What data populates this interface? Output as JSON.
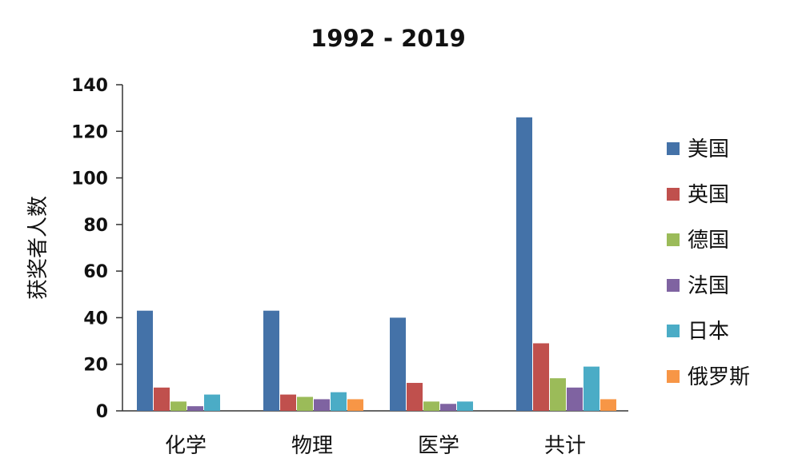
{
  "chart_data": {
    "type": "bar",
    "title": "1992 - 2019",
    "ylabel": "获奖者人数",
    "xlabel": "",
    "ylim": [
      0,
      140
    ],
    "yticks": [
      0,
      20,
      40,
      60,
      80,
      100,
      120,
      140
    ],
    "grid": false,
    "legend_position": "right",
    "categories": [
      "化学",
      "物理",
      "医学",
      "共计"
    ],
    "series": [
      {
        "name": "美国",
        "color": "#4472a8",
        "values": [
          43,
          43,
          40,
          126
        ]
      },
      {
        "name": "英国",
        "color": "#c0504d",
        "values": [
          10,
          7,
          12,
          29
        ]
      },
      {
        "name": "德国",
        "color": "#9bbb59",
        "values": [
          4,
          6,
          4,
          14
        ]
      },
      {
        "name": "法国",
        "color": "#7f63a1",
        "values": [
          2,
          5,
          3,
          10
        ]
      },
      {
        "name": "日本",
        "color": "#4bacc6",
        "values": [
          7,
          8,
          4,
          19
        ]
      },
      {
        "name": "俄罗斯",
        "color": "#f79646",
        "values": [
          0,
          5,
          0,
          5
        ]
      }
    ]
  }
}
